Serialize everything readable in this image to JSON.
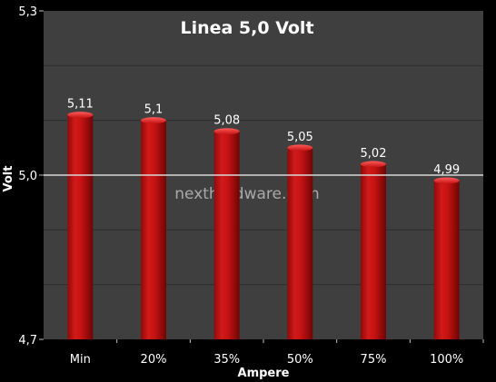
{
  "chart_data": {
    "type": "bar",
    "title": "Linea 5,0 Volt",
    "xlabel": "Ampere",
    "ylabel": "Volt",
    "categories": [
      "Min",
      "20%",
      "35%",
      "50%",
      "75%",
      "100%"
    ],
    "values": [
      5.11,
      5.1,
      5.08,
      5.05,
      5.02,
      4.99
    ],
    "value_labels": [
      "5,11",
      "5,1",
      "5,08",
      "5,05",
      "5,02",
      "4,99"
    ],
    "ylim": [
      4.7,
      5.3
    ],
    "yticks": [
      4.7,
      5.0,
      5.3
    ],
    "ytick_labels": [
      "4,7",
      "5,0",
      "5,3"
    ],
    "grid": "horizontal",
    "legend": "none"
  },
  "watermark": "nexthardware.com",
  "colors": {
    "background": "#000000",
    "plot_area": "#3f3f3f",
    "bar": "#c81414",
    "bar_dark": "#7a0606",
    "reference_line": "#d9d9d9",
    "text": "#ffffff"
  }
}
